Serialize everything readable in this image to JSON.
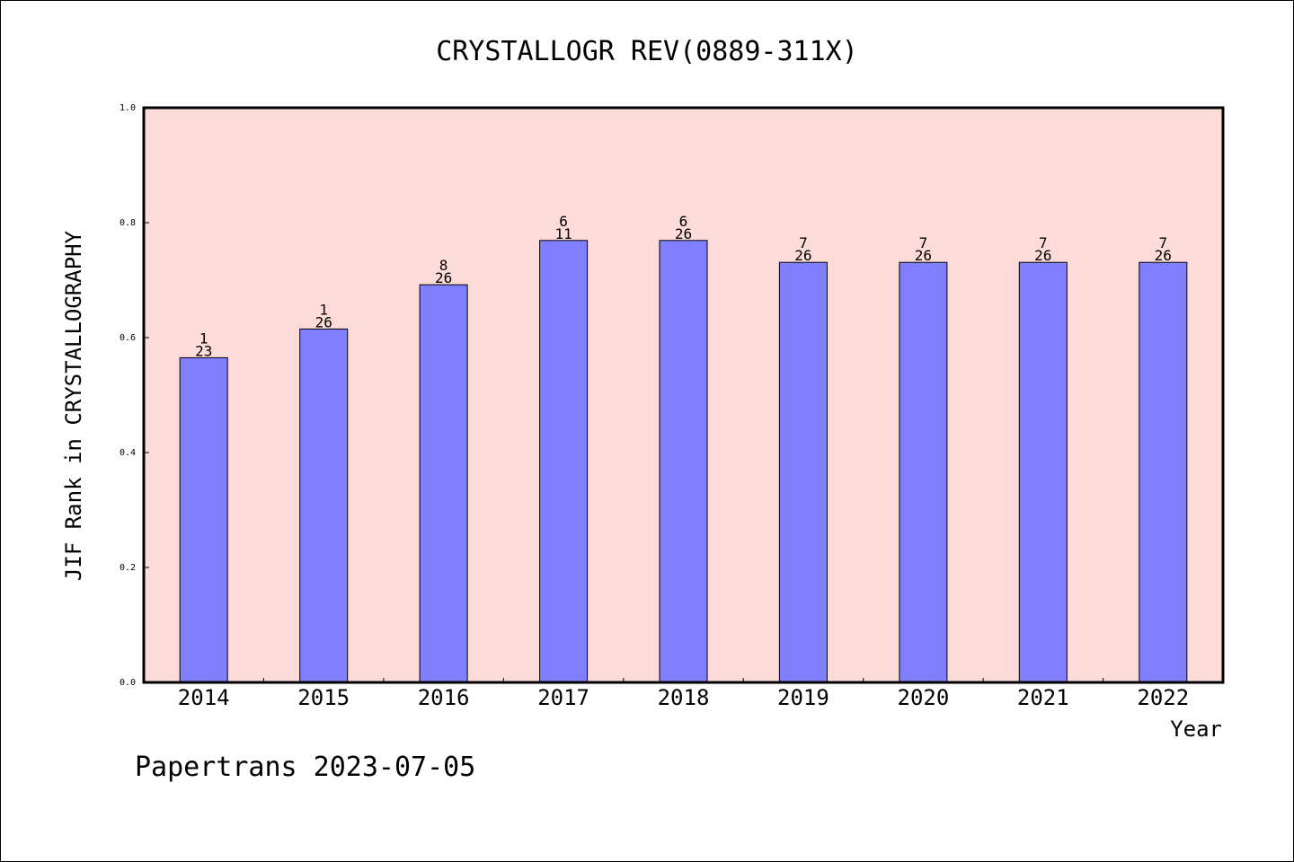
{
  "chart_data": {
    "type": "bar",
    "title": "CRYSTALLOGR REV(0889-311X)",
    "xlabel": "Year",
    "ylabel": "JIF Rank in CRYSTALLOGRAPHY",
    "ylim": [
      0,
      1.0
    ],
    "yticks": [
      "0.0",
      "0.2",
      "0.4",
      "0.6",
      "0.8",
      "1.0"
    ],
    "categories": [
      "2014",
      "2015",
      "2016",
      "2017",
      "2018",
      "2019",
      "2020",
      "2021",
      "2022"
    ],
    "values": [
      0.565,
      0.615,
      0.692,
      0.769,
      0.769,
      0.731,
      0.731,
      0.731,
      0.731
    ],
    "rank_labels": [
      {
        "rank": "1",
        "total": "23"
      },
      {
        "rank": "1",
        "total": "26"
      },
      {
        "rank": "8",
        "total": "26"
      },
      {
        "rank": "6",
        "total": "11"
      },
      {
        "rank": "6",
        "total": "26"
      },
      {
        "rank": "7",
        "total": "26"
      },
      {
        "rank": "7",
        "total": "26"
      },
      {
        "rank": "7",
        "total": "26"
      },
      {
        "rank": "7",
        "total": "26"
      }
    ],
    "grid": false,
    "colors": {
      "plot_background": "#fddbd8",
      "bar_fill": "#8080ff",
      "bar_edge": "#000000",
      "axis": "#000000"
    }
  },
  "footer": "Papertrans 2023-07-05"
}
